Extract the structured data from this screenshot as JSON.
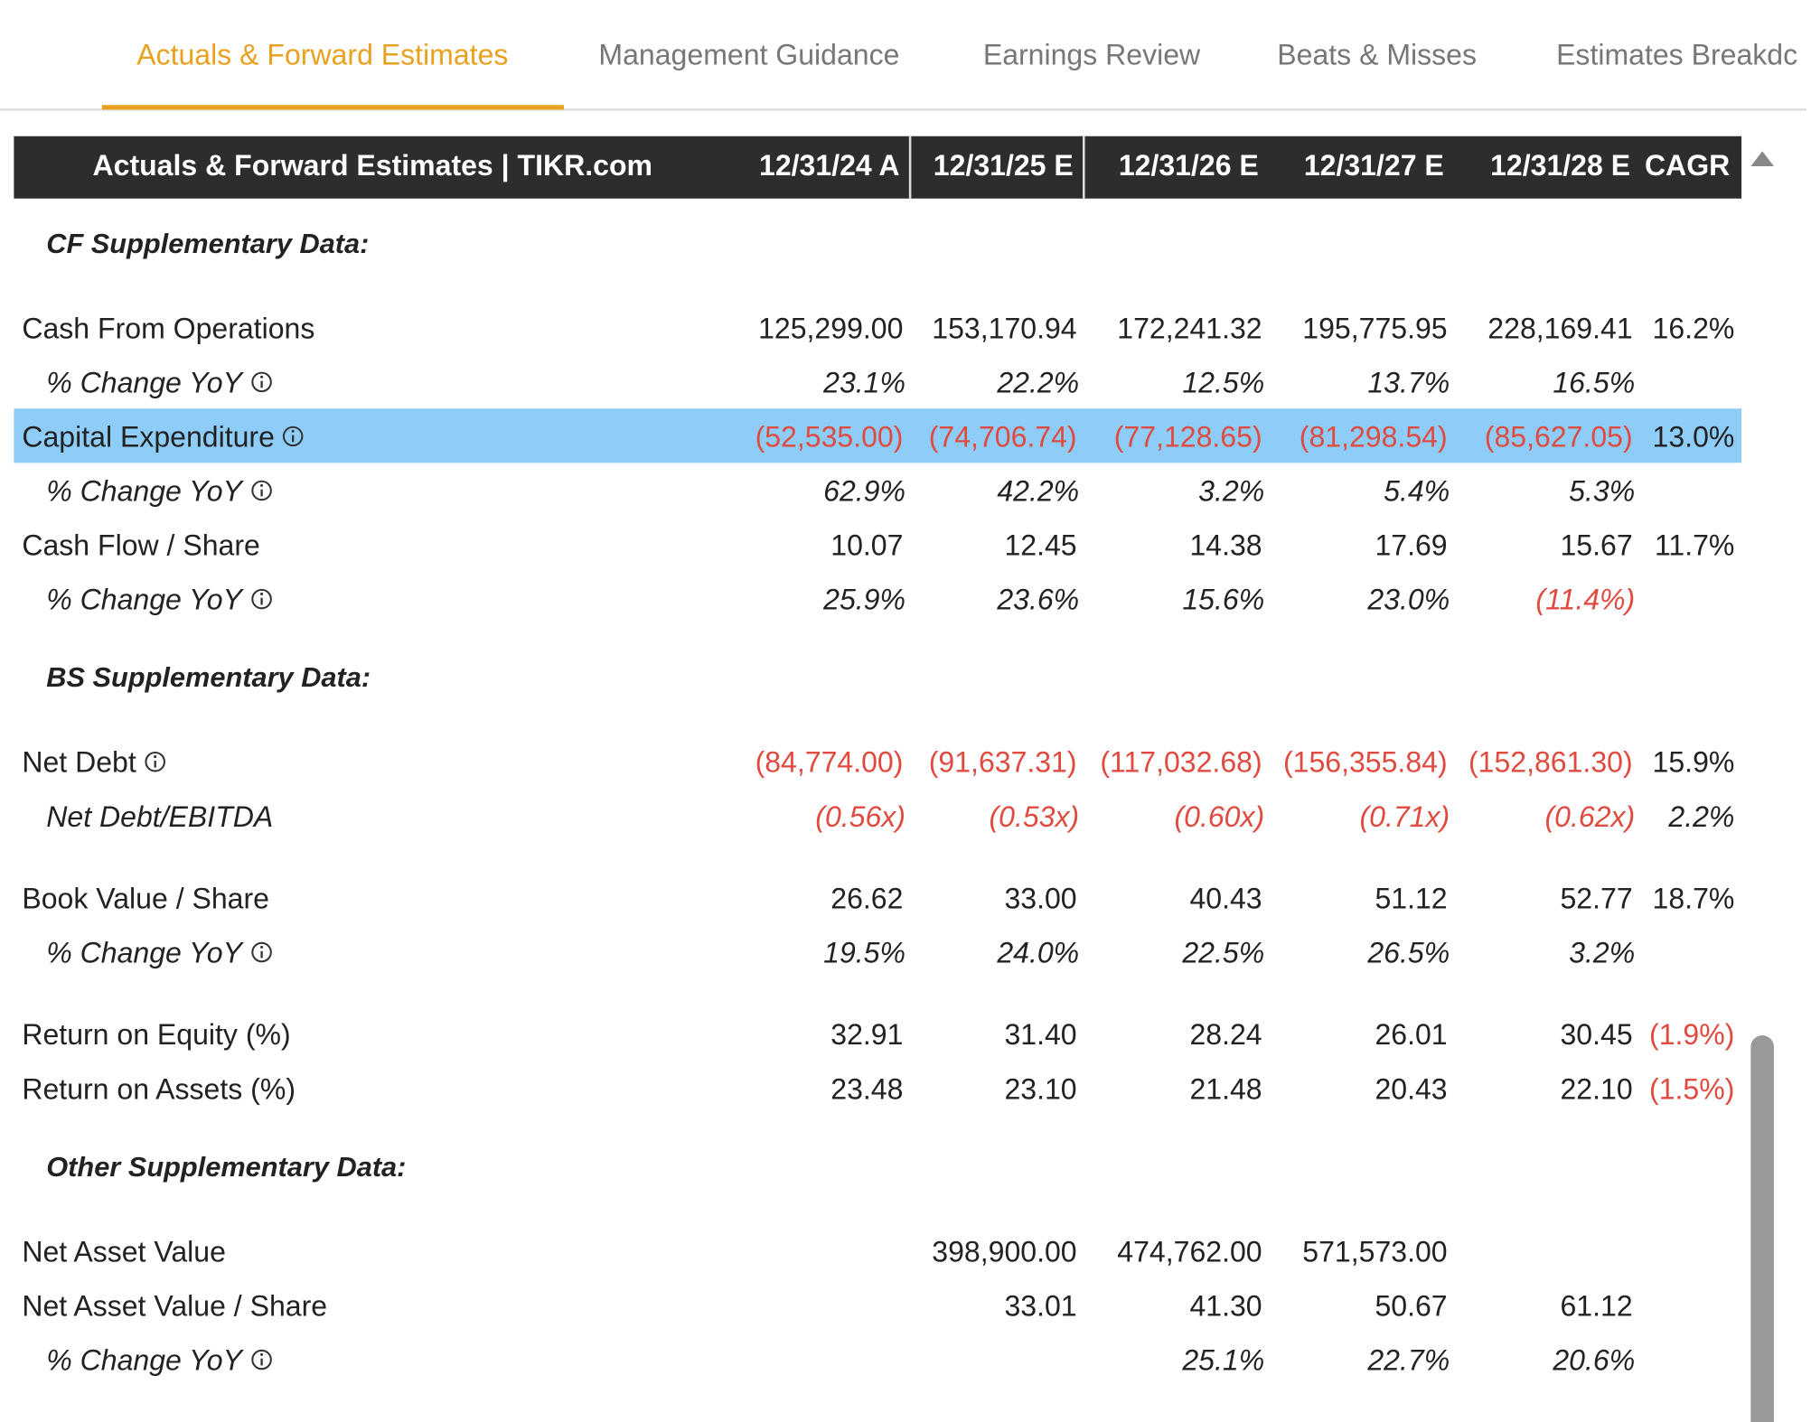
{
  "tabs": {
    "items": [
      "Actuals & Forward Estimates",
      "Management Guidance",
      "Earnings Review",
      "Beats & Misses",
      "Estimates Breakdc"
    ],
    "active": 0
  },
  "table": {
    "header": {
      "title": "Actuals & Forward Estimates | TIKR.com",
      "columns": [
        "12/31/24 A",
        "12/31/25 E",
        "12/31/26 E",
        "12/31/27 E",
        "12/31/28 E",
        "CAGR"
      ]
    },
    "sections": [
      {
        "title": "CF Supplementary Data:",
        "rows": [
          {
            "label": "Cash From Operations",
            "values": [
              "125,299.00",
              "153,170.94",
              "172,241.32",
              "195,775.95",
              "228,169.41",
              "16.2%"
            ]
          },
          {
            "label": "% Change YoY",
            "sub": true,
            "info": true,
            "values": [
              "23.1%",
              "22.2%",
              "12.5%",
              "13.7%",
              "16.5%",
              null
            ]
          },
          {
            "label": "Capital Expenditure",
            "info": true,
            "highlight": true,
            "values": [
              "(52,535.00)",
              "(74,706.74)",
              "(77,128.65)",
              "(81,298.54)",
              "(85,627.05)",
              "13.0%"
            ]
          },
          {
            "label": "% Change YoY",
            "sub": true,
            "info": true,
            "values": [
              "62.9%",
              "42.2%",
              "3.2%",
              "5.4%",
              "5.3%",
              null
            ]
          },
          {
            "label": "Cash Flow / Share",
            "values": [
              "10.07",
              "12.45",
              "14.38",
              "17.69",
              "15.67",
              "11.7%"
            ]
          },
          {
            "label": "% Change YoY",
            "sub": true,
            "info": true,
            "values": [
              "25.9%",
              "23.6%",
              "15.6%",
              "23.0%",
              "(11.4%)",
              null
            ]
          }
        ]
      },
      {
        "title": "BS Supplementary Data:",
        "rows": [
          {
            "label": "Net Debt",
            "info": true,
            "values": [
              "(84,774.00)",
              "(91,637.31)",
              "(117,032.68)",
              "(156,355.84)",
              "(152,861.30)",
              "15.9%"
            ]
          },
          {
            "label": "Net Debt/EBITDA",
            "sub": true,
            "values": [
              "(0.56x)",
              "(0.53x)",
              "(0.60x)",
              "(0.71x)",
              "(0.62x)",
              "2.2%"
            ]
          },
          {
            "label": "Book Value / Share",
            "gap": true,
            "values": [
              "26.62",
              "33.00",
              "40.43",
              "51.12",
              "52.77",
              "18.7%"
            ]
          },
          {
            "label": "% Change YoY",
            "sub": true,
            "info": true,
            "values": [
              "19.5%",
              "24.0%",
              "22.5%",
              "26.5%",
              "3.2%",
              null
            ]
          },
          {
            "label": "Return on Equity (%)",
            "gap": true,
            "values": [
              "32.91",
              "31.40",
              "28.24",
              "26.01",
              "30.45",
              "(1.9%)"
            ]
          },
          {
            "label": "Return on Assets (%)",
            "values": [
              "23.48",
              "23.10",
              "21.48",
              "20.43",
              "22.10",
              "(1.5%)"
            ]
          }
        ]
      },
      {
        "title": "Other Supplementary Data:",
        "rows": [
          {
            "label": "Net Asset Value",
            "values": [
              null,
              "398,900.00",
              "474,762.00",
              "571,573.00",
              null,
              null
            ]
          },
          {
            "label": "Net Asset Value / Share",
            "values": [
              null,
              "33.01",
              "41.30",
              "50.67",
              "61.12",
              null
            ]
          },
          {
            "label": "% Change YoY",
            "sub": true,
            "info": true,
            "values": [
              null,
              null,
              "25.1%",
              "22.7%",
              "20.6%",
              null
            ]
          }
        ]
      }
    ]
  }
}
